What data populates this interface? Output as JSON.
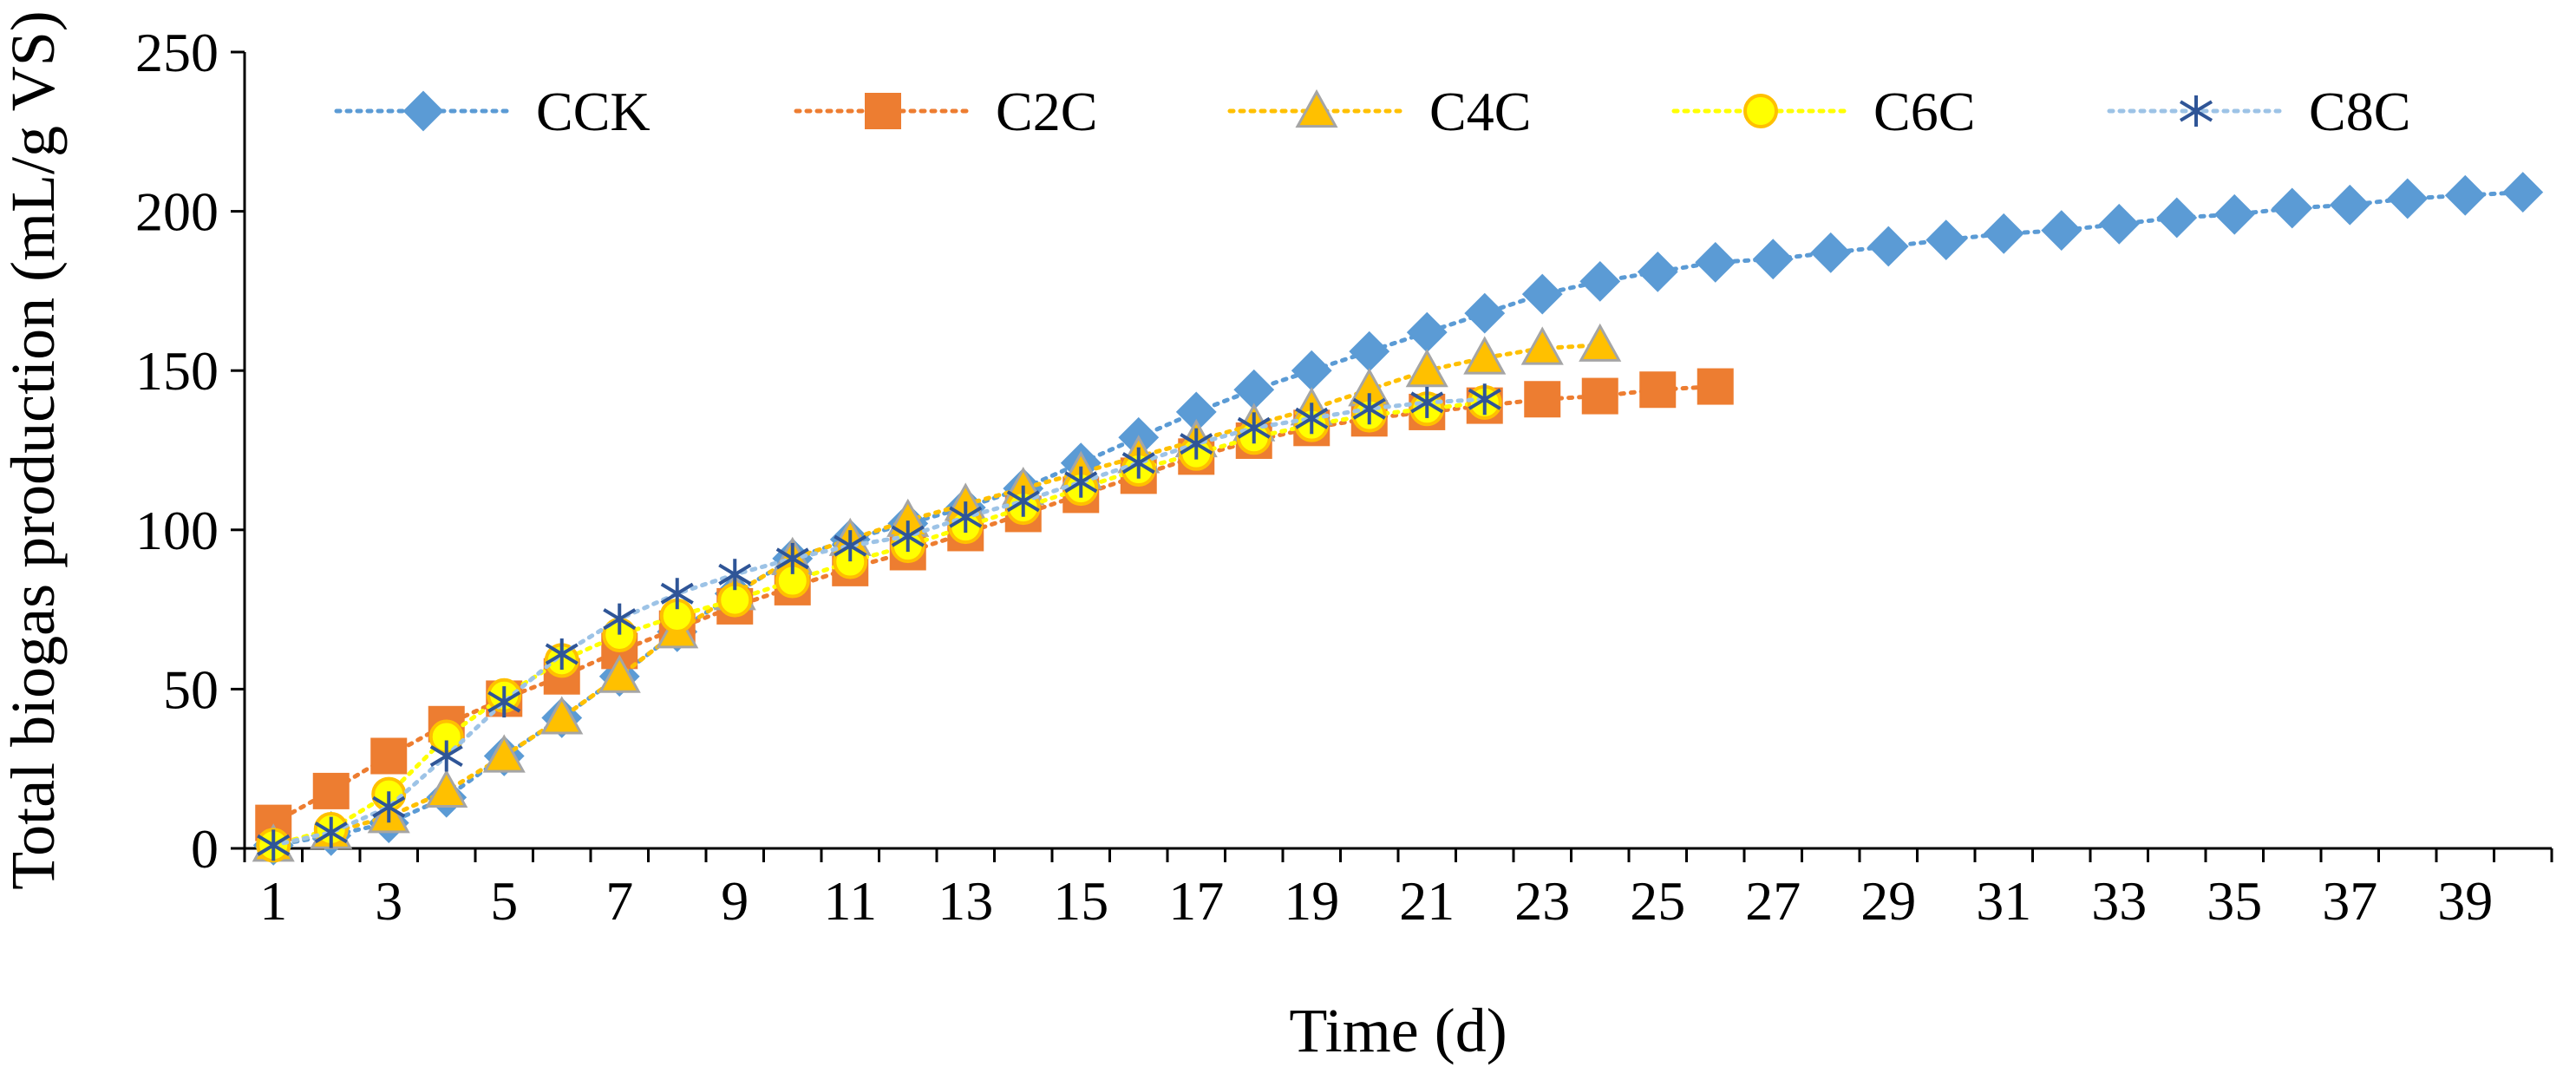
{
  "chart_data": {
    "type": "line",
    "title": "",
    "xlabel": "Time (d)",
    "ylabel": "Total biogas production  (mL/g VS)",
    "xlim": [
      0.5,
      40.5
    ],
    "ylim": [
      0,
      250
    ],
    "x_tick_labels": [
      "1",
      "3",
      "5",
      "7",
      "9",
      "11",
      "13",
      "15",
      "17",
      "19",
      "21",
      "23",
      "25",
      "27",
      "29",
      "31",
      "33",
      "35",
      "37",
      "39"
    ],
    "y_tick_labels": [
      "0",
      "50",
      "100",
      "150",
      "200",
      "250"
    ],
    "grid": false,
    "legend_position": "top",
    "series": [
      {
        "name": "CCK",
        "marker": "diamond",
        "color": "#5B9BD5",
        "x": [
          1,
          2,
          3,
          4,
          5,
          6,
          7,
          8,
          9,
          10,
          11,
          12,
          13,
          14,
          15,
          16,
          17,
          18,
          19,
          20,
          21,
          22,
          23,
          24,
          25,
          26,
          27,
          28,
          29,
          30,
          31,
          32,
          33,
          34,
          35,
          36,
          37,
          38,
          39,
          40
        ],
        "values": [
          1,
          4,
          8,
          16,
          29,
          41,
          54,
          68,
          80,
          91,
          97,
          102,
          107,
          113,
          121,
          129,
          137,
          144,
          150,
          156,
          162,
          168,
          174,
          178,
          181,
          184,
          185,
          187,
          189,
          191,
          193,
          194,
          196,
          198,
          199,
          201,
          202,
          204,
          205,
          206
        ]
      },
      {
        "name": "C2C",
        "marker": "square",
        "color": "#ED7D31",
        "x": [
          1,
          2,
          3,
          4,
          5,
          6,
          7,
          8,
          9,
          10,
          11,
          12,
          13,
          14,
          15,
          16,
          17,
          18,
          19,
          20,
          21,
          22,
          23,
          24,
          25,
          26
        ],
        "values": [
          8,
          18,
          29,
          39,
          47,
          54,
          62,
          69,
          76,
          82,
          88,
          93,
          99,
          105,
          111,
          117,
          123,
          128,
          132,
          135,
          137,
          139,
          141,
          142,
          144,
          145
        ]
      },
      {
        "name": "C4C",
        "marker": "triangle",
        "color": "#FFC000",
        "x": [
          1,
          2,
          3,
          4,
          5,
          6,
          7,
          8,
          9,
          10,
          11,
          12,
          13,
          14,
          15,
          16,
          17,
          18,
          19,
          20,
          21,
          22,
          23,
          24
        ],
        "values": [
          1,
          5,
          10,
          18,
          29,
          41,
          54,
          68,
          80,
          91,
          97,
          103,
          108,
          113,
          118,
          123,
          128,
          133,
          138,
          144,
          150,
          154,
          157,
          158
        ]
      },
      {
        "name": "C6C",
        "marker": "circle",
        "color": "#FFFF00",
        "x": [
          1,
          2,
          3,
          4,
          5,
          6,
          7,
          8,
          9,
          10,
          11,
          12,
          13,
          14,
          15,
          16,
          17,
          18,
          19,
          20,
          21,
          22
        ],
        "values": [
          1,
          6,
          17,
          35,
          48,
          59,
          67,
          73,
          78,
          84,
          90,
          95,
          101,
          107,
          113,
          119,
          124,
          129,
          133,
          136,
          138,
          140
        ]
      },
      {
        "name": "C8C",
        "marker": "star",
        "color": "#9DC3E6",
        "x": [
          1,
          2,
          3,
          4,
          5,
          6,
          7,
          8,
          9,
          10,
          11,
          12,
          13,
          14,
          15,
          16,
          17,
          18,
          19,
          20,
          21,
          22
        ],
        "values": [
          1,
          5,
          13,
          29,
          46,
          61,
          72,
          80,
          86,
          91,
          95,
          98,
          104,
          109,
          115,
          121,
          127,
          132,
          135,
          138,
          140,
          141
        ]
      }
    ]
  }
}
